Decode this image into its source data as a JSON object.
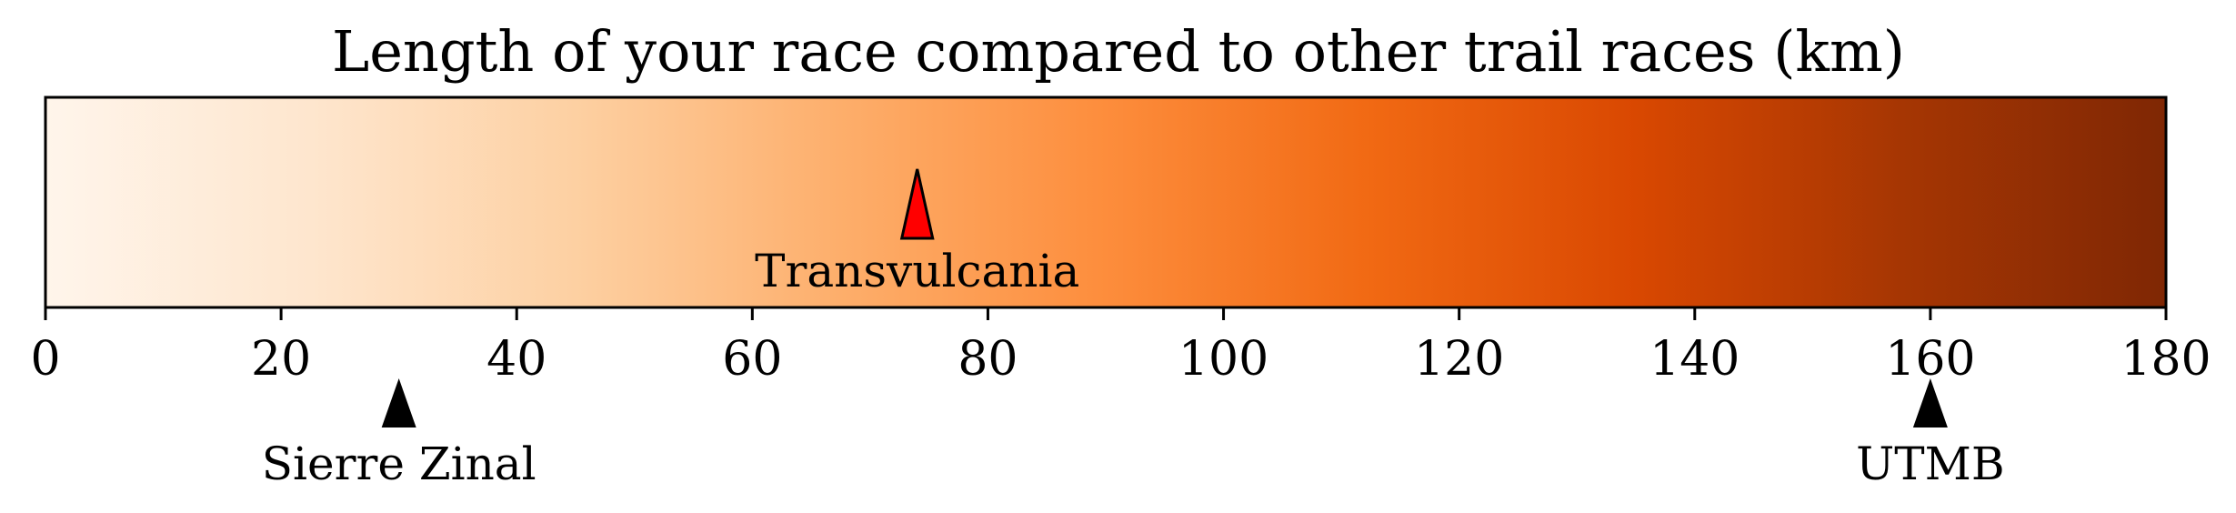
{
  "chart_data": {
    "type": "colorbar",
    "title": "Length of your race compared to other trail races (km)",
    "xlim": [
      0,
      180
    ],
    "ticks": [
      0,
      20,
      40,
      60,
      80,
      100,
      120,
      140,
      160,
      180
    ],
    "tick_labels": [
      "0",
      "20",
      "40",
      "60",
      "80",
      "100",
      "120",
      "140",
      "160",
      "180"
    ],
    "colormap": [
      "#fff5eb",
      "#fee6ce",
      "#fdd0a2",
      "#fdae6b",
      "#fd8d3c",
      "#f16913",
      "#d94801",
      "#a63603",
      "#7f2704"
    ],
    "your_race": {
      "name": "Transvulcania",
      "value": 74,
      "color": "#ff0000"
    },
    "reference_races": [
      {
        "name": "Sierre Zinal",
        "value": 30,
        "color": "#000000"
      },
      {
        "name": "UTMB",
        "value": 160,
        "color": "#000000"
      }
    ]
  }
}
